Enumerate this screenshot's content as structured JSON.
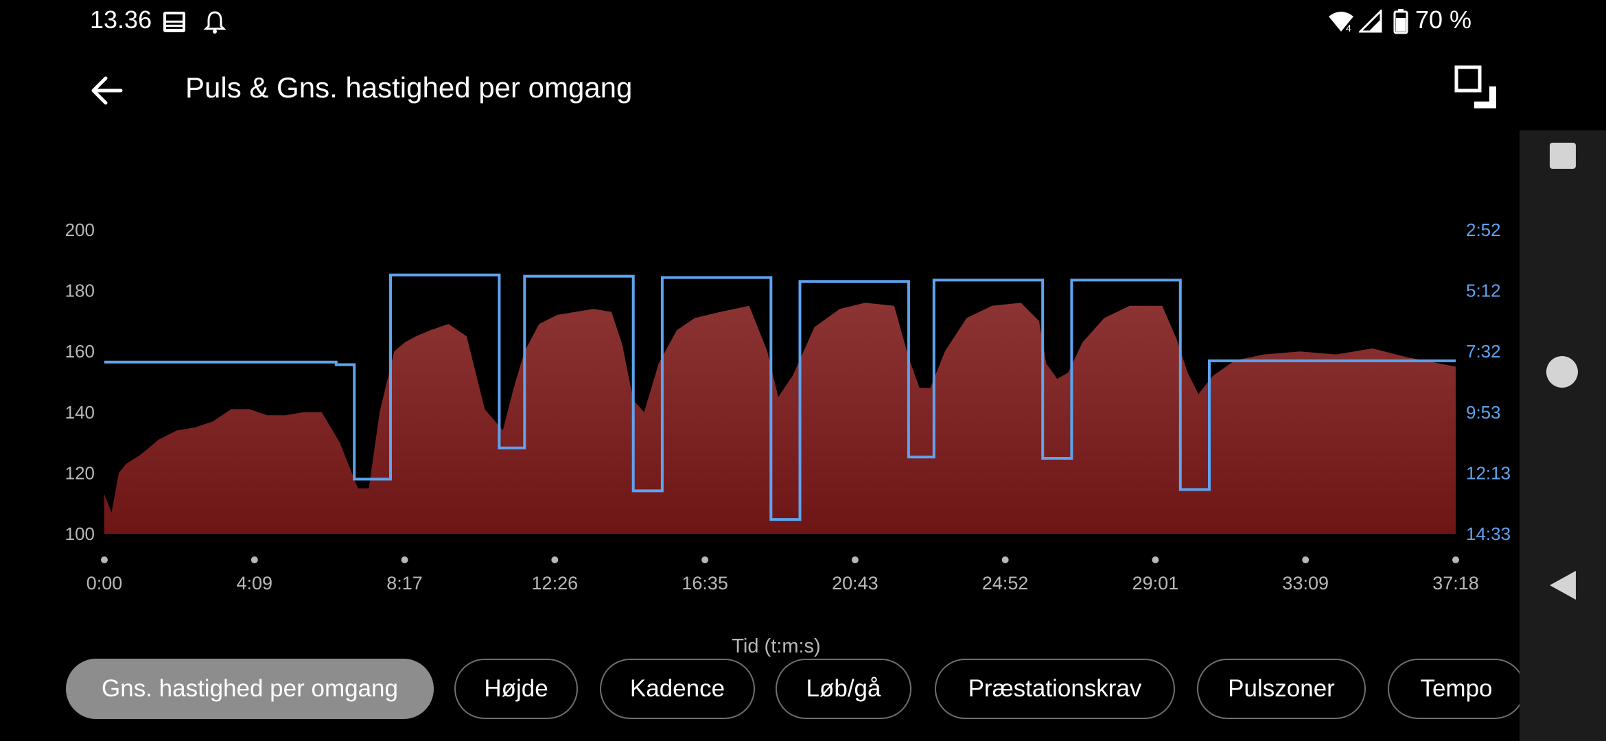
{
  "status_bar": {
    "time": "13.36",
    "battery": "70 %",
    "icons": [
      "message-icon",
      "alarm-bell-icon",
      "wifi-icon",
      "signal-icon",
      "battery-icon"
    ]
  },
  "header": {
    "title": "Puls & Gns. hastighed per omgang",
    "back_icon": "arrow-left-icon",
    "fullscreen_icon": "fullscreen-toggle-icon"
  },
  "chart_data": {
    "type": "area",
    "xlabel": "Tid (t:m:s)",
    "x_ticks": [
      "0:00",
      "4:09",
      "8:17",
      "12:26",
      "16:35",
      "20:43",
      "24:52",
      "29:01",
      "33:09",
      "37:18"
    ],
    "x_range_min": [
      0,
      37.3
    ],
    "left_axis": {
      "ticks": [
        "100",
        "120",
        "140",
        "160",
        "180",
        "200"
      ],
      "range": [
        100,
        200
      ]
    },
    "right_axis": {
      "ticks": [
        "14:33",
        "12:13",
        "9:53",
        "7:32",
        "5:12",
        "2:52"
      ],
      "range": [
        "14:33",
        "2:52"
      ]
    },
    "grid": false,
    "series": [
      {
        "kind": "area",
        "color": "#8a2424",
        "x_min": [
          0,
          0.2,
          0.4,
          0.6,
          1.0,
          1.5,
          2.0,
          2.5,
          3.0,
          3.5,
          4.0,
          4.5,
          5.0,
          5.5,
          6.0,
          6.5,
          7.0,
          7.3,
          7.6,
          8.0,
          8.3,
          8.6,
          9.0,
          9.5,
          10.0,
          10.5,
          11.0,
          11.3,
          11.6,
          12.0,
          12.5,
          13.0,
          13.5,
          14.0,
          14.3,
          14.6,
          14.9,
          15.3,
          15.8,
          16.3,
          17.0,
          17.8,
          18.3,
          18.6,
          19.0,
          19.6,
          20.3,
          21.0,
          21.8,
          22.2,
          22.5,
          22.8,
          23.2,
          23.8,
          24.5,
          25.3,
          25.8,
          26.0,
          26.3,
          26.6,
          27.0,
          27.6,
          28.3,
          29.2,
          29.6,
          29.9,
          30.2,
          30.6,
          31.2,
          32.0,
          33.0,
          34.0,
          35.0,
          36.0,
          37.3
        ],
        "heart_rate": [
          113,
          107,
          120,
          123,
          126,
          131,
          134,
          135,
          137,
          141,
          141,
          139,
          139,
          140,
          140,
          130,
          115,
          115,
          140,
          160,
          163,
          165,
          167,
          169,
          165,
          141,
          134,
          148,
          160,
          169,
          172,
          173,
          174,
          173,
          162,
          144,
          140,
          156,
          167,
          171,
          173,
          175,
          160,
          145,
          152,
          168,
          174,
          176,
          175,
          158,
          148,
          148,
          160,
          171,
          175,
          176,
          170,
          156,
          151,
          153,
          163,
          171,
          175,
          175,
          164,
          153,
          146,
          152,
          157,
          159,
          160,
          159,
          161,
          158,
          155
        ]
      },
      {
        "kind": "step-line",
        "color": "#5ea3ef",
        "steps": [
          {
            "x_from": 0.0,
            "x_to": 6.4,
            "pace_min_per_km": 7.95
          },
          {
            "x_from": 6.4,
            "x_to": 6.9,
            "pace_min_per_km": 8.05
          },
          {
            "x_from": 6.9,
            "x_to": 7.9,
            "pace_min_per_km": 12.45
          },
          {
            "x_from": 7.9,
            "x_to": 10.9,
            "pace_min_per_km": 4.6
          },
          {
            "x_from": 10.9,
            "x_to": 11.6,
            "pace_min_per_km": 11.25
          },
          {
            "x_from": 11.6,
            "x_to": 14.6,
            "pace_min_per_km": 4.65
          },
          {
            "x_from": 14.6,
            "x_to": 15.4,
            "pace_min_per_km": 12.9
          },
          {
            "x_from": 15.4,
            "x_to": 18.4,
            "pace_min_per_km": 4.7
          },
          {
            "x_from": 18.4,
            "x_to": 19.2,
            "pace_min_per_km": 14.0
          },
          {
            "x_from": 19.2,
            "x_to": 22.2,
            "pace_min_per_km": 4.85
          },
          {
            "x_from": 22.2,
            "x_to": 22.9,
            "pace_min_per_km": 11.6
          },
          {
            "x_from": 22.9,
            "x_to": 25.9,
            "pace_min_per_km": 4.8
          },
          {
            "x_from": 25.9,
            "x_to": 26.7,
            "pace_min_per_km": 11.65
          },
          {
            "x_from": 26.7,
            "x_to": 29.7,
            "pace_min_per_km": 4.8
          },
          {
            "x_from": 29.7,
            "x_to": 30.5,
            "pace_min_per_km": 12.85
          },
          {
            "x_from": 30.5,
            "x_to": 37.3,
            "pace_min_per_km": 7.9
          }
        ]
      }
    ]
  },
  "filters": [
    {
      "label": "Gns. hastighed per omgang",
      "active": true
    },
    {
      "label": "Højde",
      "active": false
    },
    {
      "label": "Kadence",
      "active": false
    },
    {
      "label": "Løb/gå",
      "active": false
    },
    {
      "label": "Præstationskrav",
      "active": false
    },
    {
      "label": "Pulszoner",
      "active": false
    },
    {
      "label": "Tempo",
      "active": false
    }
  ],
  "nav_bar": {
    "icons": [
      "recent-apps-icon",
      "home-icon",
      "back-triangle-icon"
    ]
  }
}
